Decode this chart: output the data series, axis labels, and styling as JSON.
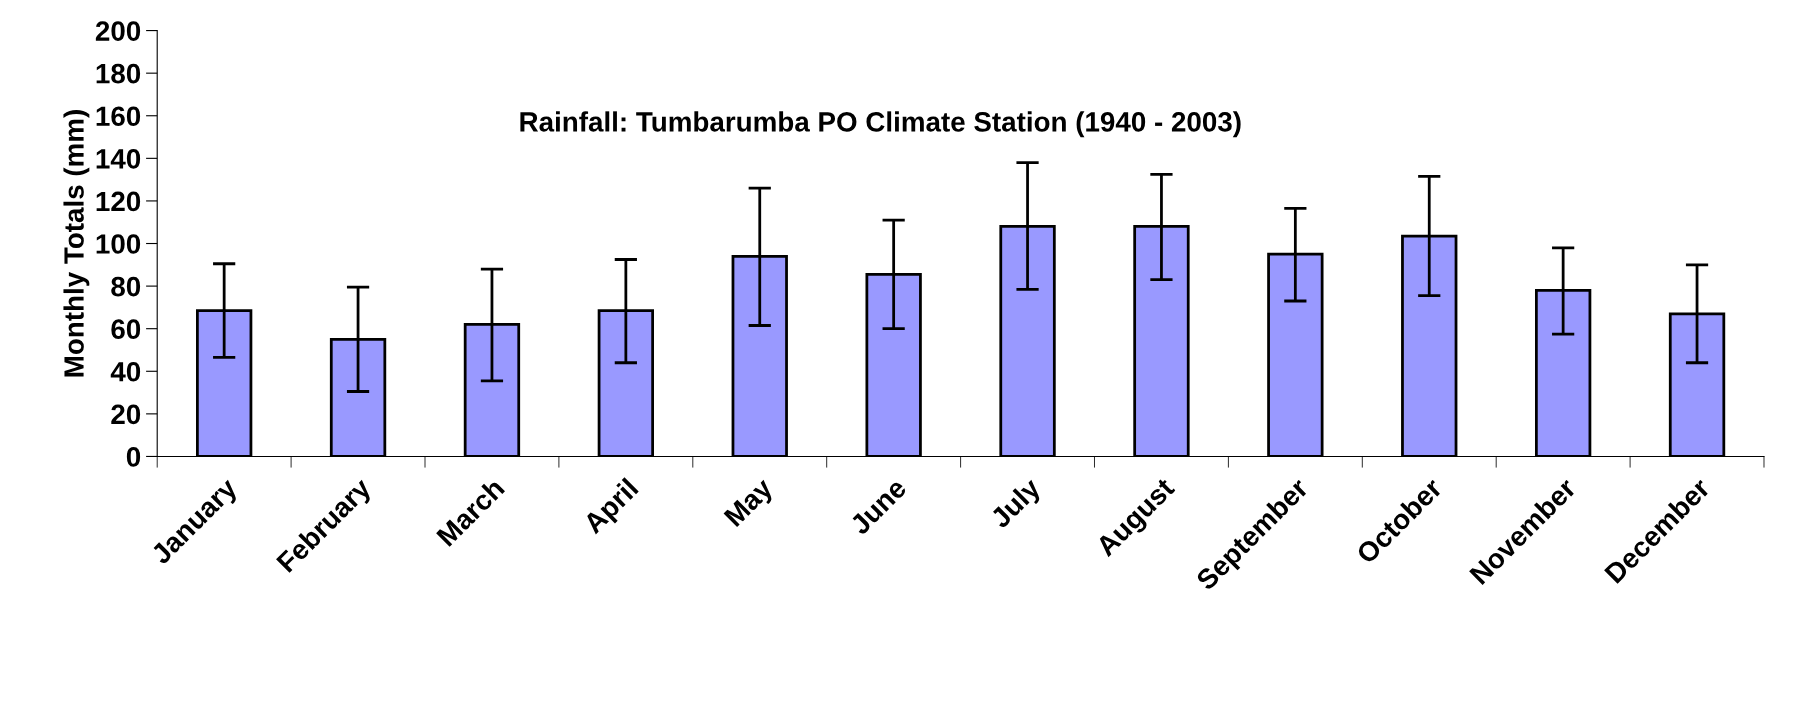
{
  "chart_data": {
    "type": "bar",
    "title": "Rainfall: Tumbarumba PO Climate Station (1940 - 2003)",
    "ylabel": "Monthly Totals (mm)",
    "categories": [
      "January",
      "February",
      "March",
      "April",
      "May",
      "June",
      "July",
      "August",
      "September",
      "October",
      "November",
      "December"
    ],
    "series": [
      {
        "color": "#9999ff",
        "values": [
          68.5,
          55,
          62,
          68.5,
          94,
          85.5,
          108,
          108,
          95,
          103.5,
          78,
          67
        ],
        "errors": [
          [
            46.5,
            90.5
          ],
          [
            30.5,
            79.5
          ],
          [
            35.5,
            88
          ],
          [
            44,
            92.5
          ],
          [
            61.5,
            126
          ],
          [
            60,
            111
          ],
          [
            78.5,
            138
          ],
          [
            83,
            132.5
          ],
          [
            73,
            116.5
          ],
          [
            75.5,
            131.5
          ],
          [
            57.5,
            98
          ],
          [
            44,
            90
          ]
        ]
      }
    ],
    "ylim": [
      0,
      200
    ],
    "yticks": [
      0,
      20,
      40,
      60,
      80,
      100,
      120,
      140,
      160,
      180,
      200
    ],
    "grid": false,
    "legend": false
  }
}
